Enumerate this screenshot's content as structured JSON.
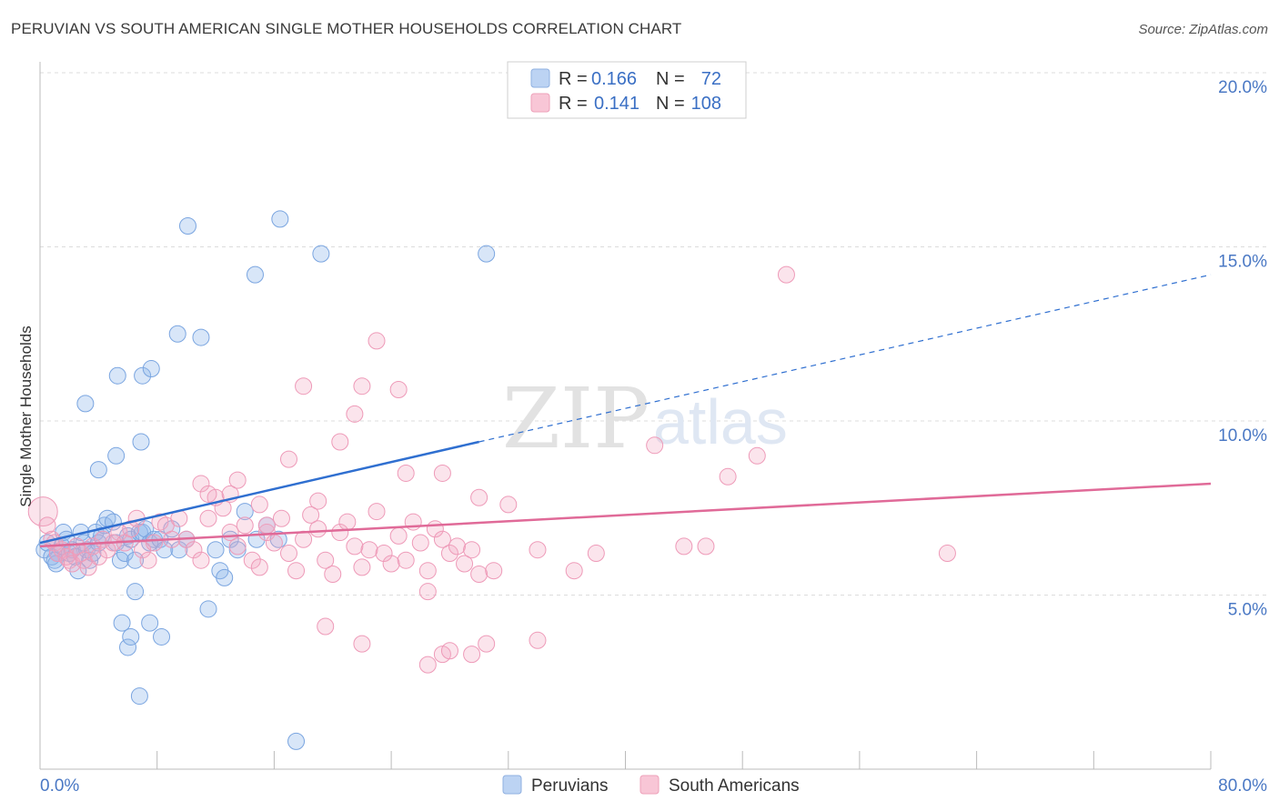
{
  "title": "PERUVIAN VS SOUTH AMERICAN SINGLE MOTHER HOUSEHOLDS CORRELATION CHART",
  "source": "Source: ZipAtlas.com",
  "watermark": {
    "zip": "ZIP",
    "atlas": "atlas"
  },
  "chart_data": {
    "type": "scatter",
    "xlabel": "",
    "ylabel": "Single Mother Households",
    "xlim": [
      0,
      80
    ],
    "ylim": [
      0,
      20
    ],
    "x_tick_labels": [
      "0.0%",
      "80.0%"
    ],
    "y_ticks": [
      5,
      10,
      15,
      20
    ],
    "y_tick_labels": [
      "5.0%",
      "10.0%",
      "15.0%",
      "20.0%"
    ],
    "grid": "horizontal dashed",
    "legend_placement": "top-center",
    "colors": {
      "peruvians": "#8fb6ea",
      "south_americans": "#f3a7c1",
      "peruvians_line": "#2f6fd0",
      "south_americans_line": "#e06a98"
    },
    "stats": [
      {
        "series": "Peruvians",
        "r_label": "R =",
        "r": "0.166",
        "n_label": "N =",
        "n": "72"
      },
      {
        "series": "South Americans",
        "r_label": "R =",
        "r": "0.141",
        "n_label": "N =",
        "n": "108"
      }
    ],
    "series": [
      {
        "name": "Peruvians",
        "trend": {
          "x0": 0,
          "y0": 6.5,
          "x1": 30,
          "y1": 9.4,
          "dash_to_x": 80,
          "dash_to_y": 14.2
        },
        "points": [
          [
            0.3,
            6.3
          ],
          [
            0.5,
            6.5
          ],
          [
            0.8,
            6.1
          ],
          [
            1.0,
            6.0
          ],
          [
            1.1,
            5.9
          ],
          [
            1.2,
            6.2
          ],
          [
            1.5,
            6.4
          ],
          [
            1.6,
            6.8
          ],
          [
            1.8,
            6.6
          ],
          [
            2.0,
            6.2
          ],
          [
            2.2,
            6.3
          ],
          [
            2.4,
            6.1
          ],
          [
            2.6,
            5.7
          ],
          [
            2.8,
            6.8
          ],
          [
            3.0,
            6.5
          ],
          [
            3.2,
            6.3
          ],
          [
            3.4,
            6.0
          ],
          [
            3.6,
            6.2
          ],
          [
            3.8,
            6.8
          ],
          [
            4.0,
            6.5
          ],
          [
            4.2,
            6.7
          ],
          [
            4.4,
            7.0
          ],
          [
            4.6,
            7.2
          ],
          [
            5.0,
            7.1
          ],
          [
            5.2,
            6.5
          ],
          [
            5.5,
            6.0
          ],
          [
            5.8,
            6.2
          ],
          [
            6.0,
            6.7
          ],
          [
            6.2,
            6.6
          ],
          [
            6.5,
            6.0
          ],
          [
            6.8,
            6.8
          ],
          [
            7.0,
            6.8
          ],
          [
            7.2,
            6.9
          ],
          [
            7.5,
            6.5
          ],
          [
            7.8,
            6.6
          ],
          [
            8.2,
            6.6
          ],
          [
            8.5,
            6.3
          ],
          [
            9.0,
            6.9
          ],
          [
            9.5,
            6.3
          ],
          [
            10.0,
            6.6
          ],
          [
            11.5,
            4.6
          ],
          [
            12.0,
            6.3
          ],
          [
            12.3,
            5.7
          ],
          [
            12.6,
            5.5
          ],
          [
            13.0,
            6.6
          ],
          [
            13.5,
            6.3
          ],
          [
            14.0,
            7.4
          ],
          [
            14.8,
            6.6
          ],
          [
            15.5,
            7.0
          ],
          [
            16.3,
            6.6
          ],
          [
            4.0,
            8.6
          ],
          [
            5.2,
            9.0
          ],
          [
            3.1,
            10.5
          ],
          [
            5.3,
            11.3
          ],
          [
            7.0,
            11.3
          ],
          [
            7.6,
            11.5
          ],
          [
            6.9,
            9.4
          ],
          [
            11.0,
            12.4
          ],
          [
            9.4,
            12.5
          ],
          [
            14.7,
            14.2
          ],
          [
            10.1,
            15.6
          ],
          [
            16.4,
            15.8
          ],
          [
            19.2,
            14.8
          ],
          [
            30.5,
            14.8
          ],
          [
            6.5,
            5.1
          ],
          [
            5.6,
            4.2
          ],
          [
            6.0,
            3.5
          ],
          [
            6.2,
            3.8
          ],
          [
            7.5,
            4.2
          ],
          [
            8.3,
            3.8
          ],
          [
            6.8,
            2.1
          ],
          [
            17.5,
            0.8
          ]
        ]
      },
      {
        "name": "South Americans",
        "trend": {
          "x0": 0,
          "y0": 6.4,
          "x1": 80,
          "y1": 8.2
        },
        "points": [
          [
            0.2,
            7.4
          ],
          [
            0.5,
            7.0
          ],
          [
            0.8,
            6.6
          ],
          [
            1.0,
            6.5
          ],
          [
            1.2,
            6.2
          ],
          [
            1.5,
            6.3
          ],
          [
            1.8,
            6.1
          ],
          [
            2.0,
            6.0
          ],
          [
            2.2,
            5.9
          ],
          [
            2.5,
            6.4
          ],
          [
            2.8,
            6.2
          ],
          [
            3.0,
            6.0
          ],
          [
            3.3,
            5.8
          ],
          [
            3.6,
            6.4
          ],
          [
            4.0,
            6.1
          ],
          [
            4.3,
            6.6
          ],
          [
            4.6,
            6.3
          ],
          [
            5.0,
            6.5
          ],
          [
            5.4,
            6.8
          ],
          [
            5.8,
            6.5
          ],
          [
            6.2,
            6.9
          ],
          [
            6.6,
            7.2
          ],
          [
            7.0,
            6.3
          ],
          [
            7.4,
            6.0
          ],
          [
            7.8,
            6.5
          ],
          [
            8.2,
            7.1
          ],
          [
            8.6,
            7.0
          ],
          [
            9.0,
            6.6
          ],
          [
            9.5,
            7.2
          ],
          [
            10.0,
            6.6
          ],
          [
            10.5,
            6.3
          ],
          [
            11.0,
            6.0
          ],
          [
            11.5,
            7.2
          ],
          [
            12.0,
            7.8
          ],
          [
            12.5,
            7.5
          ],
          [
            13.0,
            6.8
          ],
          [
            13.5,
            6.4
          ],
          [
            14.0,
            7.0
          ],
          [
            14.5,
            6.0
          ],
          [
            15.0,
            5.8
          ],
          [
            15.5,
            6.8
          ],
          [
            16.0,
            6.5
          ],
          [
            16.5,
            7.2
          ],
          [
            17.0,
            6.2
          ],
          [
            17.5,
            5.7
          ],
          [
            18.0,
            6.6
          ],
          [
            18.5,
            7.3
          ],
          [
            19.0,
            6.9
          ],
          [
            19.5,
            6.0
          ],
          [
            20.0,
            5.6
          ],
          [
            20.5,
            6.8
          ],
          [
            21.0,
            7.1
          ],
          [
            21.5,
            6.4
          ],
          [
            22.0,
            5.8
          ],
          [
            22.5,
            6.3
          ],
          [
            23.0,
            7.4
          ],
          [
            23.5,
            6.2
          ],
          [
            24.0,
            5.9
          ],
          [
            24.5,
            6.7
          ],
          [
            25.0,
            6.0
          ],
          [
            25.5,
            7.1
          ],
          [
            26.0,
            6.5
          ],
          [
            26.5,
            5.7
          ],
          [
            27.0,
            6.9
          ],
          [
            27.5,
            6.6
          ],
          [
            28.0,
            6.2
          ],
          [
            28.5,
            6.4
          ],
          [
            29.0,
            5.9
          ],
          [
            29.5,
            6.3
          ],
          [
            30.0,
            5.6
          ],
          [
            11.0,
            8.2
          ],
          [
            11.5,
            7.9
          ],
          [
            13.0,
            7.9
          ],
          [
            13.5,
            8.3
          ],
          [
            15.0,
            7.6
          ],
          [
            15.5,
            7.0
          ],
          [
            17.0,
            8.9
          ],
          [
            19.0,
            7.7
          ],
          [
            20.5,
            9.4
          ],
          [
            21.5,
            10.2
          ],
          [
            22.0,
            11.0
          ],
          [
            23.0,
            12.3
          ],
          [
            24.5,
            10.9
          ],
          [
            25.0,
            8.5
          ],
          [
            27.5,
            8.5
          ],
          [
            30.0,
            7.8
          ],
          [
            32.0,
            7.6
          ],
          [
            34.0,
            6.3
          ],
          [
            38.0,
            6.2
          ],
          [
            42.0,
            9.3
          ],
          [
            44.0,
            6.4
          ],
          [
            45.5,
            6.4
          ],
          [
            47.0,
            8.4
          ],
          [
            49.0,
            9.0
          ],
          [
            51.0,
            14.2
          ],
          [
            34.0,
            3.7
          ],
          [
            31.0,
            5.7
          ],
          [
            26.5,
            5.1
          ],
          [
            27.5,
            3.3
          ],
          [
            30.5,
            3.6
          ],
          [
            26.5,
            3.0
          ],
          [
            28.0,
            3.4
          ],
          [
            29.5,
            3.3
          ],
          [
            18.0,
            11.0
          ],
          [
            19.5,
            4.1
          ],
          [
            22.0,
            3.6
          ],
          [
            36.5,
            5.7
          ],
          [
            62.0,
            6.2
          ]
        ]
      }
    ]
  },
  "legend": {
    "peruvians": "Peruvians",
    "south_americans": "South Americans"
  }
}
